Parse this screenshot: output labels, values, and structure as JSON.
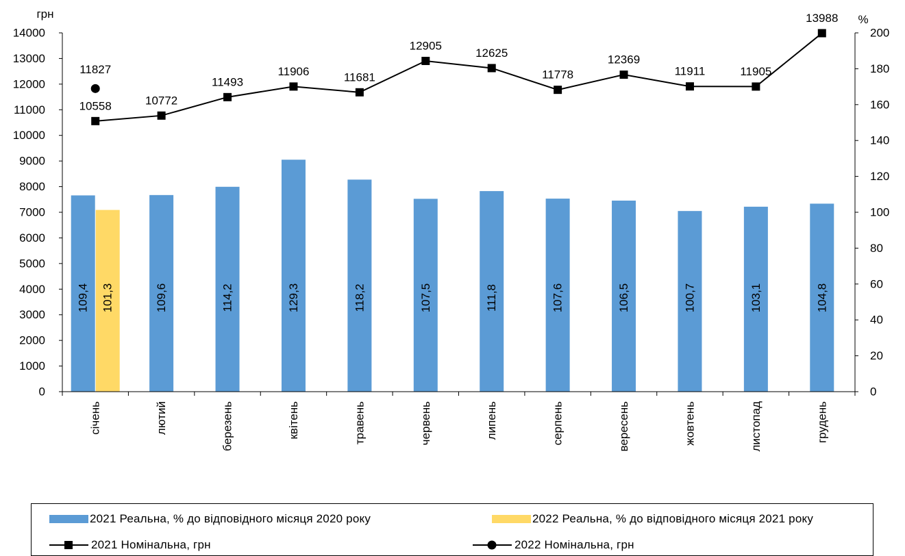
{
  "chart_data": {
    "type": "bar",
    "categories": [
      "січень",
      "лютий",
      "березень",
      "квітень",
      "травень",
      "червень",
      "липень",
      "серпень",
      "вересень",
      "жовтень",
      "листопад",
      "грудень"
    ],
    "y_left": {
      "unit_label": "грн",
      "range": [
        0,
        14000
      ],
      "step": 1000,
      "ticks": [
        "0",
        "1000",
        "2000",
        "3000",
        "4000",
        "5000",
        "6000",
        "7000",
        "8000",
        "9000",
        "10000",
        "11000",
        "12000",
        "13000",
        "14000"
      ]
    },
    "y_right": {
      "unit_label": "%",
      "range": [
        0,
        200
      ],
      "step": 20,
      "ticks": [
        "0",
        "20",
        "40",
        "60",
        "80",
        "100",
        "120",
        "140",
        "160",
        "180",
        "200"
      ]
    },
    "series": [
      {
        "name": "2021 Реальна, % до відповідного місяця 2020 року",
        "type": "bar",
        "axis": "right",
        "color": "#5B9BD5",
        "values": [
          109.4,
          109.6,
          114.2,
          129.3,
          118.2,
          107.5,
          111.8,
          107.6,
          106.5,
          100.7,
          103.1,
          104.8
        ],
        "labels": [
          "109,4",
          "109,6",
          "114,2",
          "129,3",
          "118,2",
          "107,5",
          "111,8",
          "107,6",
          "106,5",
          "100,7",
          "103,1",
          "104,8"
        ]
      },
      {
        "name": "2022 Реальна, % до відповідного місяця 2021 року",
        "type": "bar",
        "axis": "right",
        "color": "#FFD966",
        "values": [
          101.3,
          null,
          null,
          null,
          null,
          null,
          null,
          null,
          null,
          null,
          null,
          null
        ],
        "labels": [
          "101,3"
        ]
      },
      {
        "name": "2021 Номінальна, грн",
        "type": "line",
        "axis": "left",
        "marker": "square",
        "color": "#000000",
        "values": [
          10558,
          10772,
          11493,
          11906,
          11681,
          12905,
          12625,
          11778,
          12369,
          11911,
          11905,
          13988
        ],
        "labels": [
          "10558",
          "10772",
          "11493",
          "11906",
          "11681",
          "12905",
          "12625",
          "11778",
          "12369",
          "11911",
          "11905",
          "13988"
        ]
      },
      {
        "name": "2022 Номінальна, грн",
        "type": "line",
        "axis": "left",
        "marker": "circle",
        "color": "#000000",
        "values": [
          11827,
          null,
          null,
          null,
          null,
          null,
          null,
          null,
          null,
          null,
          null,
          null
        ],
        "labels": [
          "11827"
        ]
      }
    ],
    "legend_position": "bottom",
    "grid": false
  }
}
